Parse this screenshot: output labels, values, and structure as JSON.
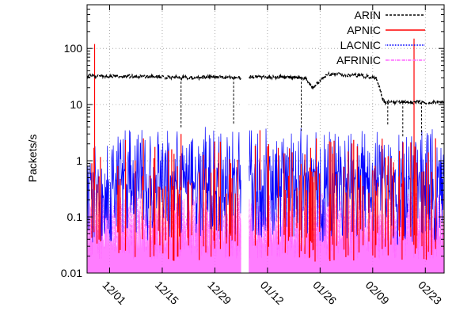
{
  "chart_data": {
    "type": "line",
    "title": "",
    "xlabel": "",
    "ylabel": "Packets/s",
    "yscale": "log",
    "ylim": [
      0.01,
      600
    ],
    "xlim": [
      "2012-11-25",
      "2013-02-28"
    ],
    "grid": true,
    "legend_position": "top-right",
    "xticks": [
      {
        "date": "2012-12-01",
        "label": "12/01"
      },
      {
        "date": "2012-12-15",
        "label": "12/15"
      },
      {
        "date": "2012-12-29",
        "label": "12/29"
      },
      {
        "date": "2013-01-12",
        "label": "01/12"
      },
      {
        "date": "2013-01-26",
        "label": "01/26"
      },
      {
        "date": "2013-02-09",
        "label": "02/09"
      },
      {
        "date": "2013-02-23",
        "label": "02/23"
      }
    ],
    "yticks": [
      {
        "value": 0.01,
        "label": "0.01"
      },
      {
        "value": 0.1,
        "label": "0.1"
      },
      {
        "value": 1,
        "label": "1"
      },
      {
        "value": 10,
        "label": "10"
      },
      {
        "value": 100,
        "label": "100"
      }
    ],
    "gap": [
      "2013-01-05",
      "2013-01-07"
    ],
    "series": [
      {
        "name": "ARIN",
        "color": "#000000",
        "style": "dashed",
        "x": [
          "2012-11-25",
          "2012-12-05",
          "2012-12-15",
          "2012-12-22",
          "2012-12-28",
          "2013-01-04",
          "2013-01-08",
          "2013-01-15",
          "2013-01-22",
          "2013-01-24",
          "2013-01-28",
          "2013-02-05",
          "2013-02-10",
          "2013-02-12",
          "2013-02-16",
          "2013-02-20",
          "2013-02-28"
        ],
        "y": [
          32,
          32,
          31,
          30,
          31,
          30,
          31,
          31,
          30,
          20,
          35,
          33,
          30,
          11,
          11,
          11,
          11
        ]
      },
      {
        "name": "APNIC",
        "color": "#ff0000",
        "style": "solid",
        "x": [
          "2012-11-27",
          "2012-12-10",
          "2012-12-20",
          "2013-01-10",
          "2013-01-25",
          "2013-02-20"
        ],
        "y": [
          120,
          2.5,
          3,
          3.5,
          2.5,
          150
        ]
      },
      {
        "name": "LACNIC",
        "color": "#0000ff",
        "style": "dotted",
        "x": [
          "2012-11-25",
          "2012-12-10",
          "2012-12-25",
          "2013-01-15",
          "2013-02-01",
          "2013-02-15",
          "2013-02-28"
        ],
        "y": [
          0.8,
          0.9,
          0.9,
          0.9,
          0.8,
          0.7,
          0.9
        ]
      },
      {
        "name": "AFRINIC",
        "color": "#ff66ff",
        "style": "dash-dot",
        "x": [
          "2012-11-25",
          "2012-12-15",
          "2013-01-15",
          "2013-02-15",
          "2013-02-28"
        ],
        "y": [
          0.04,
          0.04,
          0.04,
          0.04,
          0.04
        ]
      }
    ]
  }
}
